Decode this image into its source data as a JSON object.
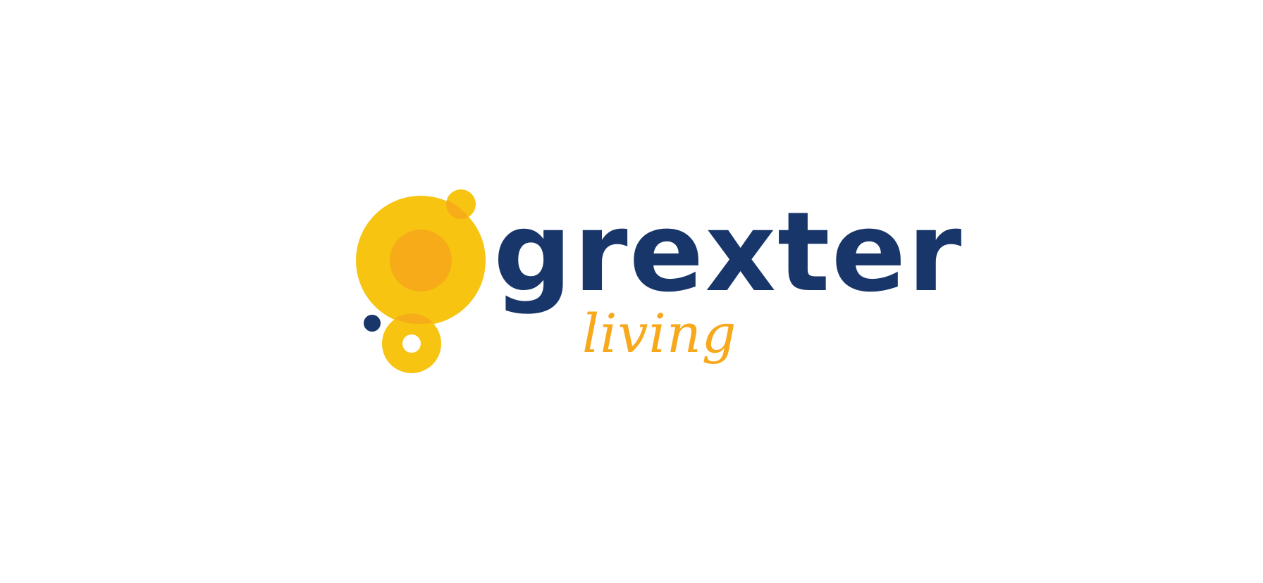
{
  "brand": {
    "name": "grexter",
    "tagline": "living"
  },
  "colors": {
    "navy": "#18366a",
    "yellow": "#f6c411",
    "orange": "#f7a81b",
    "background": "#ffffff"
  }
}
